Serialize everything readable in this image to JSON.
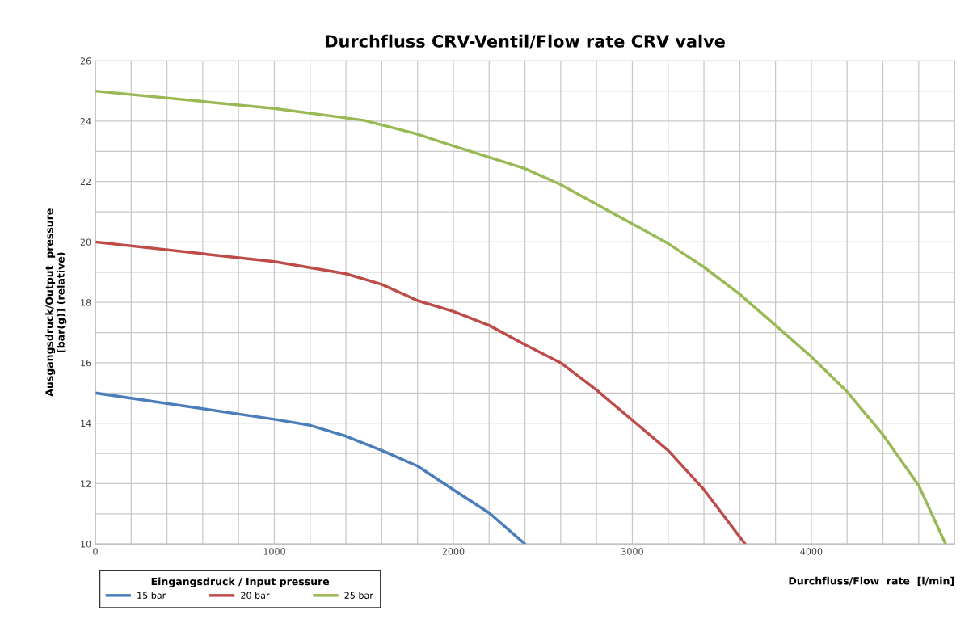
{
  "chart_data": {
    "type": "line",
    "title": "Durchfluss CRV-Ventil/Flow rate CRV valve",
    "xlabel": "Durchfluss/Flow  rate  [l/min]",
    "ylabel": "Ausgangsdruck/Output  pressure\n[bar(g)] (relative)",
    "legend_title": "Eingangsdruck / Input pressure",
    "legend": "bottom left",
    "grid": true,
    "marker": "none",
    "line_style": "solid",
    "xlim": [
      0,
      4800
    ],
    "ylim": [
      10,
      26
    ],
    "xticks": [
      0,
      {
        "value": 200,
        "label": null
      },
      {
        "value": 400,
        "label": null
      },
      {
        "value": 600,
        "label": null
      },
      {
        "value": 800,
        "label": null
      },
      1000,
      {
        "value": 1200,
        "label": null
      },
      {
        "value": 1400,
        "label": null
      },
      {
        "value": 1600,
        "label": null
      },
      {
        "value": 1800,
        "label": null
      },
      2000,
      {
        "value": 2200,
        "label": null
      },
      {
        "value": 2400,
        "label": null
      },
      {
        "value": 2600,
        "label": null
      },
      {
        "value": 2800,
        "label": null
      },
      3000,
      {
        "value": 3200,
        "label": null
      },
      {
        "value": 3400,
        "label": null
      },
      {
        "value": 3600,
        "label": null
      },
      {
        "value": 3800,
        "label": null
      },
      4000,
      {
        "value": 4200,
        "label": null
      },
      {
        "value": 4400,
        "label": null
      },
      {
        "value": 4600,
        "label": null
      },
      {
        "value": 4800,
        "label": null
      }
    ],
    "yticks": [
      10,
      {
        "value": 11,
        "label": null
      },
      12,
      {
        "value": 13,
        "label": null
      },
      14,
      {
        "value": 15,
        "label": null
      },
      16,
      {
        "value": 17,
        "label": null
      },
      18,
      {
        "value": 19,
        "label": null
      },
      20,
      {
        "value": 21,
        "label": null
      },
      22,
      {
        "value": 23,
        "label": null
      },
      24,
      {
        "value": 25,
        "label": null
      },
      26
    ],
    "series": [
      {
        "name": "15 bar",
        "color": "#4a7ebb",
        "x": [
          0,
          1000,
          1200,
          1400,
          1600,
          1800,
          2000,
          2200,
          2400
        ],
        "values": [
          15,
          14.13,
          13.93,
          13.57,
          13.1,
          12.58,
          11.8,
          11.03,
          10
        ]
      },
      {
        "name": "20 bar",
        "color": "#be4b48",
        "x": [
          0,
          1000,
          1400,
          1600,
          1800,
          2000,
          2200,
          2400,
          2600,
          2800,
          3000,
          3200,
          3400,
          3630
        ],
        "values": [
          20,
          19.35,
          18.95,
          18.6,
          18.06,
          17.7,
          17.24,
          16.6,
          16.0,
          15.1,
          14.1,
          13.1,
          11.8,
          10
        ]
      },
      {
        "name": "25 bar",
        "color": "#98b954",
        "x": [
          0,
          1000,
          1500,
          1800,
          2000,
          2400,
          2600,
          3000,
          3200,
          3400,
          3600,
          3800,
          4000,
          4200,
          4400,
          4600,
          4750
        ],
        "values": [
          25,
          24.42,
          24.03,
          23.57,
          23.18,
          22.43,
          21.9,
          20.6,
          19.95,
          19.17,
          18.27,
          17.24,
          16.2,
          15.04,
          13.62,
          11.94,
          10
        ]
      }
    ]
  }
}
